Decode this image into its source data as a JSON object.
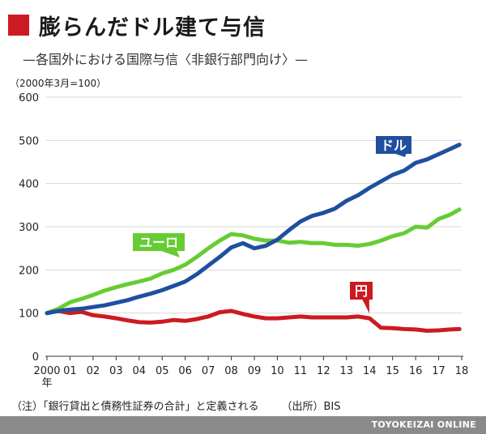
{
  "title": "膨らんだドル建て与信",
  "subtitle": "—各国外における国際与信〈非銀行部門向け〉—",
  "unit_label": "（2000年3月=100）",
  "footnote": "（注）「銀行貸出と債務性証券の合計」と定義される",
  "source": "（出所）BIS",
  "footer_brand": "TOYOKEIZAI ONLINE",
  "colors": {
    "accent": "#cc1a22",
    "dollar": "#1f4f9e",
    "euro": "#66cc33",
    "yen": "#cc1a22",
    "footer": "#8a8a8a"
  },
  "chart_data": {
    "type": "line",
    "ylim": [
      0,
      600
    ],
    "yticks": [
      "0",
      "100",
      "200",
      "300",
      "400",
      "500",
      "600"
    ],
    "xlim": [
      2000,
      2018
    ],
    "xticks": [
      "2000",
      "01",
      "02",
      "03",
      "04",
      "05",
      "06",
      "07",
      "08",
      "09",
      "10",
      "11",
      "12",
      "13",
      "14",
      "15",
      "16",
      "17",
      "18"
    ],
    "x_year_label": "年",
    "grid": true,
    "series": [
      {
        "name": "ドル",
        "x": [
          2000.0,
          2000.5,
          2001.0,
          2001.5,
          2002.0,
          2002.5,
          2003.0,
          2003.5,
          2004.0,
          2004.5,
          2005.0,
          2005.5,
          2006.0,
          2006.5,
          2007.0,
          2007.5,
          2008.0,
          2008.5,
          2009.0,
          2009.5,
          2010.0,
          2010.5,
          2011.0,
          2011.5,
          2012.0,
          2012.5,
          2013.0,
          2013.5,
          2014.0,
          2014.5,
          2015.0,
          2015.5,
          2016.0,
          2016.5,
          2017.0,
          2017.5,
          2017.9
        ],
        "values": [
          100,
          105,
          108,
          110,
          114,
          118,
          124,
          130,
          138,
          145,
          153,
          163,
          173,
          190,
          210,
          230,
          252,
          262,
          250,
          256,
          270,
          292,
          312,
          325,
          332,
          342,
          360,
          373,
          390,
          405,
          420,
          430,
          448,
          456,
          468,
          480,
          490
        ]
      },
      {
        "name": "ユーロ",
        "x": [
          2000.0,
          2000.5,
          2001.0,
          2001.5,
          2002.0,
          2002.5,
          2003.0,
          2003.5,
          2004.0,
          2004.5,
          2005.0,
          2005.5,
          2006.0,
          2006.5,
          2007.0,
          2007.5,
          2008.0,
          2008.5,
          2009.0,
          2009.5,
          2010.0,
          2010.5,
          2011.0,
          2011.5,
          2012.0,
          2012.5,
          2013.0,
          2013.5,
          2014.0,
          2014.5,
          2015.0,
          2015.5,
          2016.0,
          2016.5,
          2017.0,
          2017.5,
          2017.9
        ],
        "values": [
          100,
          110,
          125,
          133,
          142,
          152,
          160,
          167,
          173,
          180,
          192,
          200,
          212,
          230,
          250,
          268,
          283,
          280,
          272,
          268,
          268,
          263,
          265,
          262,
          262,
          258,
          258,
          256,
          260,
          268,
          278,
          285,
          300,
          298,
          318,
          328,
          340
        ]
      },
      {
        "name": "円",
        "x": [
          2000.0,
          2000.5,
          2001.0,
          2001.5,
          2002.0,
          2002.5,
          2003.0,
          2003.5,
          2004.0,
          2004.5,
          2005.0,
          2005.5,
          2006.0,
          2006.5,
          2007.0,
          2007.5,
          2008.0,
          2008.5,
          2009.0,
          2009.5,
          2010.0,
          2010.5,
          2011.0,
          2011.5,
          2012.0,
          2012.5,
          2013.0,
          2013.5,
          2014.0,
          2014.5,
          2015.0,
          2015.5,
          2016.0,
          2016.5,
          2017.0,
          2017.5,
          2017.9
        ],
        "values": [
          100,
          105,
          100,
          103,
          95,
          92,
          88,
          83,
          79,
          78,
          80,
          84,
          82,
          86,
          92,
          102,
          105,
          98,
          92,
          88,
          88,
          90,
          92,
          90,
          90,
          90,
          90,
          92,
          88,
          66,
          65,
          63,
          62,
          59,
          60,
          62,
          63
        ]
      }
    ]
  }
}
